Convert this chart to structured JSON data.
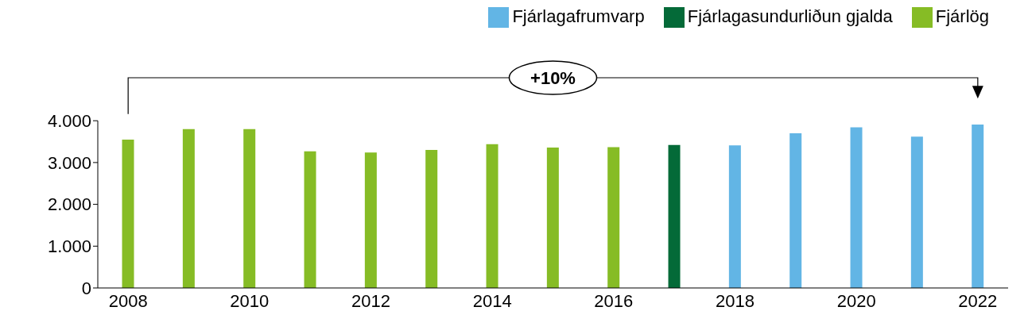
{
  "chart_data": {
    "type": "bar",
    "categories": [
      "2008",
      null,
      "2010",
      null,
      "2012",
      null,
      "2014",
      null,
      "2016",
      null,
      "2018",
      null,
      "2020",
      null,
      "2022"
    ],
    "series": [
      {
        "name": "Fjárlög",
        "color": "#86bc25",
        "values": [
          3550,
          3800,
          3800,
          3270,
          3240,
          3300,
          3440,
          3360,
          3370,
          null,
          null,
          null,
          null,
          null,
          null
        ]
      },
      {
        "name": "Fjárlagasundurliðun gjalda",
        "color": "#046a38",
        "values": [
          null,
          null,
          null,
          null,
          null,
          null,
          null,
          null,
          null,
          3420,
          null,
          null,
          null,
          null,
          null
        ]
      },
      {
        "name": "Fjárlagafrumvarp",
        "color": "#62b5e5",
        "values": [
          null,
          null,
          null,
          null,
          null,
          null,
          null,
          null,
          null,
          null,
          3410,
          3700,
          3840,
          3620,
          3910
        ]
      }
    ],
    "ylim": [
      0,
      4000
    ],
    "yticks": [
      {
        "value": 0,
        "label": "0"
      },
      {
        "value": 1000,
        "label": "1.000"
      },
      {
        "value": 2000,
        "label": "2.000"
      },
      {
        "value": 3000,
        "label": "3.000"
      },
      {
        "value": 4000,
        "label": "4.000"
      }
    ],
    "grid": false,
    "legend": "top right",
    "annotations": [
      "+10%"
    ]
  }
}
